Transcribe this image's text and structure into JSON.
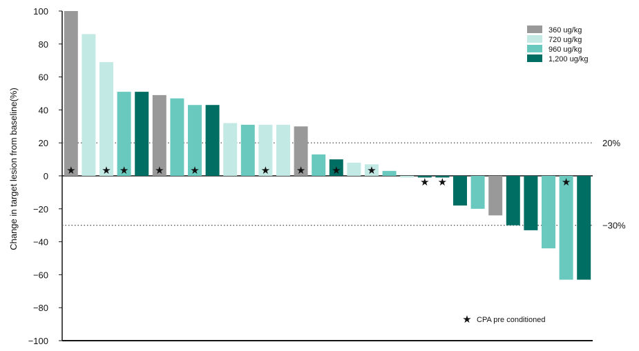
{
  "chart_data": {
    "type": "bar",
    "title": "",
    "xlabel": "",
    "ylabel": "Change in target lesion from baseline(%)",
    "ylim": [
      -100,
      100
    ],
    "yticks": [
      100,
      80,
      60,
      40,
      20,
      0,
      -20,
      -40,
      -60,
      -80,
      -100
    ],
    "grid": false,
    "legend_position": "top-right",
    "series": [
      {
        "name": "360 ug/kg",
        "color": "#999999"
      },
      {
        "name": "720 ug/kg",
        "color": "#c3e9e4"
      },
      {
        "name": "960 ug/kg",
        "color": "#69c9be"
      },
      {
        "name": "1,200 ug/kg",
        "color": "#006e63"
      }
    ],
    "bars": [
      {
        "value": 100,
        "series": 0,
        "cpa": true
      },
      {
        "value": 86,
        "series": 1,
        "cpa": false
      },
      {
        "value": 69,
        "series": 1,
        "cpa": true
      },
      {
        "value": 51,
        "series": 2,
        "cpa": true
      },
      {
        "value": 51,
        "series": 3,
        "cpa": false
      },
      {
        "value": 49,
        "series": 0,
        "cpa": true
      },
      {
        "value": 47,
        "series": 2,
        "cpa": false
      },
      {
        "value": 43,
        "series": 2,
        "cpa": true
      },
      {
        "value": 43,
        "series": 3,
        "cpa": false
      },
      {
        "value": 32,
        "series": 1,
        "cpa": false
      },
      {
        "value": 31,
        "series": 2,
        "cpa": false
      },
      {
        "value": 31,
        "series": 1,
        "cpa": true
      },
      {
        "value": 31,
        "series": 1,
        "cpa": false
      },
      {
        "value": 30,
        "series": 0,
        "cpa": true
      },
      {
        "value": 13,
        "series": 2,
        "cpa": false
      },
      {
        "value": 10,
        "series": 3,
        "cpa": true
      },
      {
        "value": 8,
        "series": 1,
        "cpa": false
      },
      {
        "value": 7,
        "series": 1,
        "cpa": true
      },
      {
        "value": 3,
        "series": 2,
        "cpa": false
      },
      {
        "value": -1,
        "series": 1,
        "cpa": false
      },
      {
        "value": -1,
        "series": 3,
        "cpa": true
      },
      {
        "value": -1,
        "series": 3,
        "cpa": true
      },
      {
        "value": -18,
        "series": 3,
        "cpa": false
      },
      {
        "value": -20,
        "series": 2,
        "cpa": false
      },
      {
        "value": -24,
        "series": 0,
        "cpa": false
      },
      {
        "value": -30,
        "series": 3,
        "cpa": false
      },
      {
        "value": -33,
        "series": 3,
        "cpa": false
      },
      {
        "value": -44,
        "series": 2,
        "cpa": false
      },
      {
        "value": -63,
        "series": 2,
        "cpa": true
      },
      {
        "value": -63,
        "series": 3,
        "cpa": false
      }
    ],
    "reference_lines": [
      {
        "value": 20,
        "label": "20%"
      },
      {
        "value": -30,
        "label": "−30%"
      }
    ],
    "annotation": {
      "symbol": "★",
      "text": "CPA pre conditioned"
    }
  }
}
